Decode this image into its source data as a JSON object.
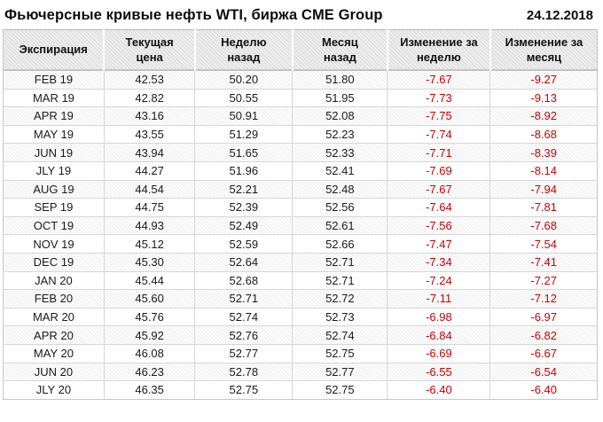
{
  "header": {
    "title": "Фьючерсные кривые нефть WTI, биржа CME Group",
    "date": "24.12.2018"
  },
  "colors": {
    "negative_text": "#cc0000",
    "normal_text": "#1a1a1a",
    "header_background": "#e2e2e2"
  },
  "chart_data": {
    "type": "table",
    "title": "Фьючерсные кривые нефть WTI, биржа CME Group",
    "date": "24.12.2018",
    "columns": [
      "Экспирация",
      "Текущая цена",
      "Неделю назад",
      "Месяц назад",
      "Изменение за неделю",
      "Изменение за месяц"
    ],
    "columns_two_line": [
      [
        "Экспирация",
        ""
      ],
      [
        "Текущая",
        "цена"
      ],
      [
        "Неделю",
        "назад"
      ],
      [
        "Месяц",
        "назад"
      ],
      [
        "Изменение за",
        "неделю"
      ],
      [
        "Изменение за",
        "месяц"
      ]
    ],
    "rows": [
      [
        "FEB 19",
        "42.53",
        "50.20",
        "51.80",
        "-7.67",
        "-9.27"
      ],
      [
        "MAR 19",
        "42.82",
        "50.55",
        "51.95",
        "-7.73",
        "-9.13"
      ],
      [
        "APR 19",
        "43.16",
        "50.91",
        "52.08",
        "-7.75",
        "-8.92"
      ],
      [
        "MAY 19",
        "43.55",
        "51.29",
        "52.23",
        "-7.74",
        "-8.68"
      ],
      [
        "JUN 19",
        "43.94",
        "51.65",
        "52.33",
        "-7.71",
        "-8.39"
      ],
      [
        "JLY 19",
        "44.27",
        "51.96",
        "52.41",
        "-7.69",
        "-8.14"
      ],
      [
        "AUG 19",
        "44.54",
        "52.21",
        "52.48",
        "-7.67",
        "-7.94"
      ],
      [
        "SEP 19",
        "44.75",
        "52.39",
        "52.56",
        "-7.64",
        "-7.81"
      ],
      [
        "OCT 19",
        "44.93",
        "52.49",
        "52.61",
        "-7.56",
        "-7.68"
      ],
      [
        "NOV 19",
        "45.12",
        "52.59",
        "52.66",
        "-7.47",
        "-7.54"
      ],
      [
        "DEC 19",
        "45.30",
        "52.64",
        "52.71",
        "-7.34",
        "-7.41"
      ],
      [
        "JAN 20",
        "45.44",
        "52.68",
        "52.71",
        "-7.24",
        "-7.27"
      ],
      [
        "FEB 20",
        "45.60",
        "52.71",
        "52.72",
        "-7.11",
        "-7.12"
      ],
      [
        "MAR 20",
        "45.76",
        "52.74",
        "52.73",
        "-6.98",
        "-6.97"
      ],
      [
        "APR 20",
        "45.92",
        "52.76",
        "52.74",
        "-6.84",
        "-6.82"
      ],
      [
        "MAY 20",
        "46.08",
        "52.77",
        "52.75",
        "-6.69",
        "-6.67"
      ],
      [
        "JUN 20",
        "46.23",
        "52.78",
        "52.77",
        "-6.55",
        "-6.54"
      ],
      [
        "JLY 20",
        "46.35",
        "52.75",
        "52.75",
        "-6.40",
        "-6.40"
      ]
    ]
  }
}
